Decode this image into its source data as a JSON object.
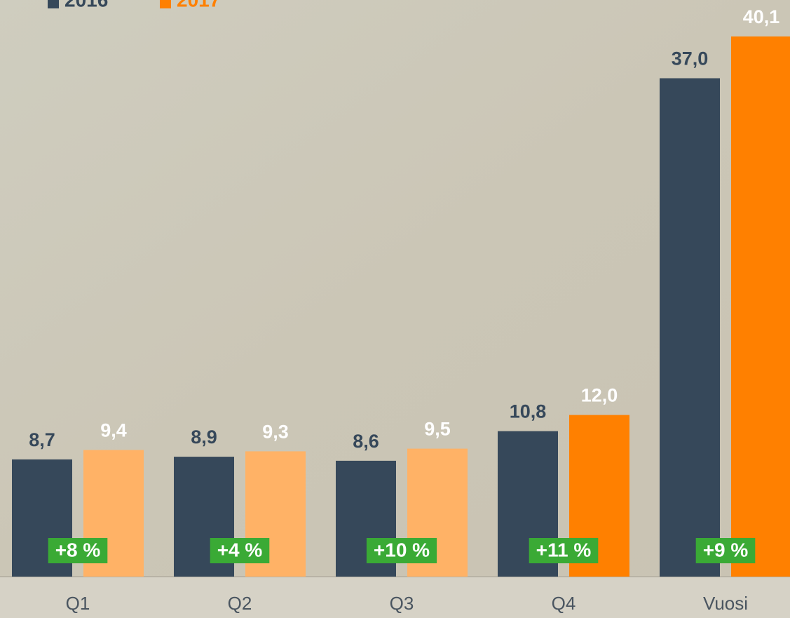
{
  "chart_data": {
    "type": "bar",
    "categories": [
      "Q1",
      "Q2",
      "Q3",
      "Q4",
      "Vuosi"
    ],
    "series": [
      {
        "name": "2016",
        "color": "#36485a",
        "label_color": "#36485a",
        "values": [
          8.7,
          8.9,
          8.6,
          10.8,
          37.0
        ],
        "value_labels": [
          "8,7",
          "8,9",
          "8,6",
          "10,8",
          "37,0"
        ]
      },
      {
        "name": "2017",
        "color": "#ff8000",
        "label_color": "#ffffff",
        "colors": [
          "#ffb266",
          "#ffb266",
          "#ffb266",
          "#ff8000",
          "#ff8000"
        ],
        "values": [
          9.4,
          9.3,
          9.5,
          12.0,
          40.1
        ],
        "value_labels": [
          "9,4",
          "9,3",
          "9,5",
          "12,0",
          "40,1"
        ]
      }
    ],
    "annotations": [
      "+8 %",
      "+4 %",
      "+10 %",
      "+11 %",
      "+9 %"
    ],
    "annotation_color": "#3aaa35"
  }
}
